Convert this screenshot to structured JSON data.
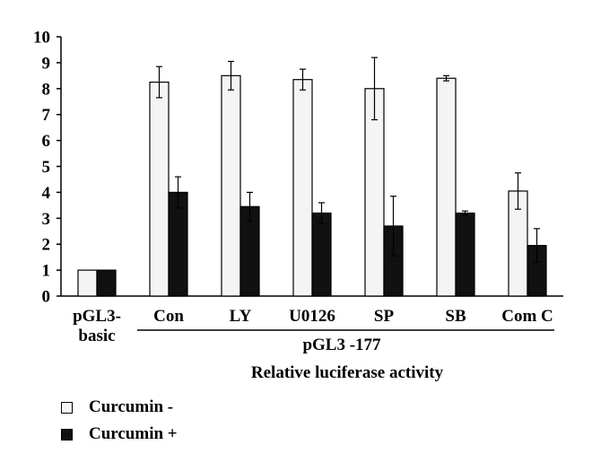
{
  "chart_data": {
    "type": "bar",
    "title": "",
    "xlabel": "Relative luciferase activity",
    "ylabel": "",
    "ylim": [
      0,
      10
    ],
    "yticks": [
      0,
      1,
      2,
      3,
      4,
      5,
      6,
      7,
      8,
      9,
      10
    ],
    "categories": [
      "pGL3-\nbasic",
      "Con",
      "LY",
      "U0126",
      "SP",
      "SB",
      "Com C"
    ],
    "group_label": "pGL3 -177",
    "grid": false,
    "legend_position": "bottom-left",
    "series": [
      {
        "name": "Curcumin -",
        "color": "#f4f4f4",
        "values": [
          1.0,
          8.25,
          8.5,
          8.35,
          8.0,
          8.4,
          4.05
        ],
        "errors": [
          0.0,
          0.6,
          0.55,
          0.4,
          1.2,
          0.1,
          0.7
        ]
      },
      {
        "name": "Curcumin +",
        "color": "#111111",
        "values": [
          1.0,
          4.0,
          3.45,
          3.2,
          2.7,
          3.2,
          1.95
        ],
        "errors": [
          0.0,
          0.6,
          0.55,
          0.4,
          1.15,
          0.08,
          0.65
        ]
      }
    ]
  }
}
